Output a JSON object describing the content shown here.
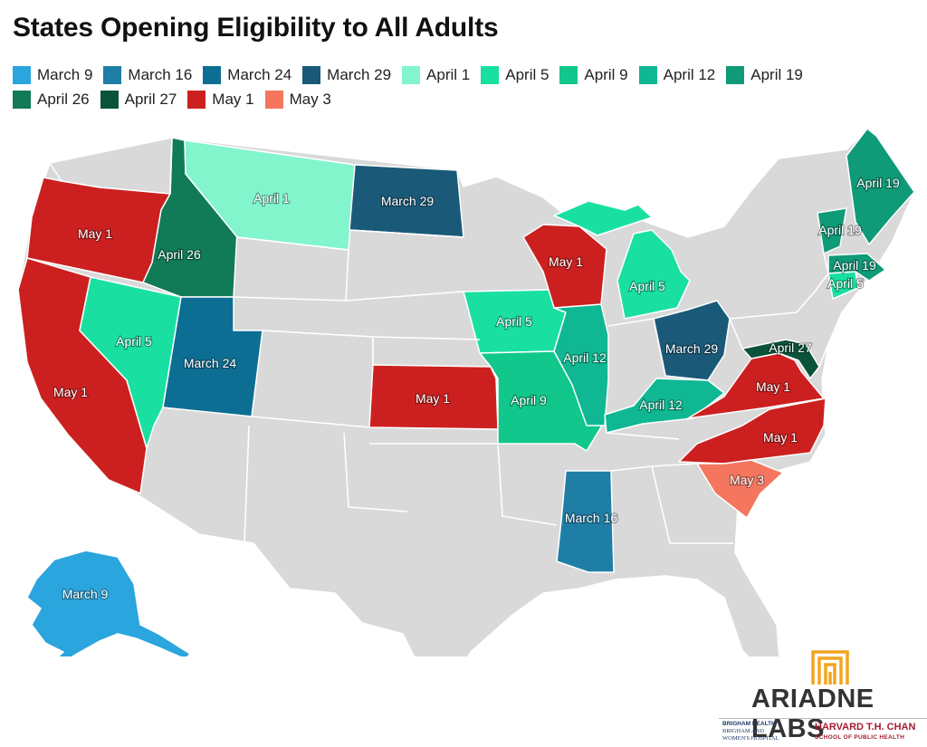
{
  "title": "States Opening Eligibility to All Adults",
  "colors": {
    "base": "#d9d9d9",
    "border": "#ffffff"
  },
  "legend": [
    [
      {
        "label": "March 9",
        "color": "#2aa5dd"
      },
      {
        "label": "March 16",
        "color": "#1e7ea6"
      },
      {
        "label": "March 24",
        "color": "#0d6e93"
      },
      {
        "label": "March 29",
        "color": "#1a5a78"
      },
      {
        "label": "April 1",
        "color": "#82f5cc"
      },
      {
        "label": "April 5",
        "color": "#19e0a1"
      },
      {
        "label": "April 9",
        "color": "#11c78c"
      },
      {
        "label": "April 12",
        "color": "#0fb893"
      },
      {
        "label": "April 19",
        "color": "#0f9a78"
      }
    ],
    [
      {
        "label": "April 26",
        "color": "#117a57"
      },
      {
        "label": "April 27",
        "color": "#0a5338"
      },
      {
        "label": "May 1",
        "color": "#cc2020"
      },
      {
        "label": "May 3",
        "color": "#f4765e"
      }
    ]
  ],
  "map_labels": {
    "wa": "",
    "mt": "April 1",
    "nd": "March 29",
    "or": "May 1",
    "id": "April 26",
    "ca": "May 1",
    "nv": "April 5",
    "ut": "March 24",
    "ks": "May 1",
    "ia": "April 5",
    "mo": "April 9",
    "il": "April 12",
    "wi": "May 1",
    "mi": "April 5",
    "oh": "March 29",
    "ky": "April 12",
    "va": "May 1",
    "nc": "May 1",
    "sc": "May 3",
    "ms": "March 16",
    "ak": "March 9",
    "me": "April 19",
    "vt": "April 19",
    "ma": "April 19",
    "ct": "April 5",
    "md": "April 27"
  },
  "logos": {
    "ariadne": "ARIADNE LABS",
    "bwh_head": "BRIGHAM HEALTH",
    "bwh_line1": "BRIGHAM AND",
    "bwh_line2": "WOMEN'S HOSPITAL",
    "hsph_main": "HARVARD T.H. CHAN",
    "hsph_sub": "SCHOOL OF PUBLIC HEALTH"
  }
}
